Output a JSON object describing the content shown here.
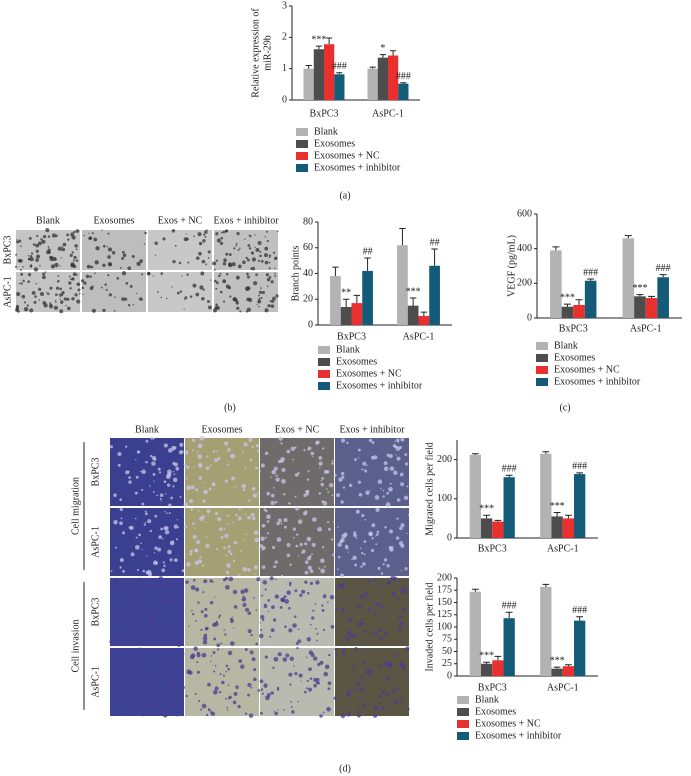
{
  "panel_labels": [
    "(a)",
    "(b)",
    "(c)",
    "(d)"
  ],
  "micrographs_b": {
    "columns": [
      "Blank",
      "Exosomes",
      "Exos + NC",
      "Exos + inhibitor"
    ],
    "rows": [
      "BxPC3",
      "AsPC-1"
    ]
  },
  "micrographs_d": {
    "columns": [
      "Blank",
      "Exosomes",
      "Exos + NC",
      "Exos + inhibitor"
    ],
    "groups": [
      {
        "name": "Cell migration",
        "rows": [
          "BxPC3",
          "AsPC-1"
        ]
      },
      {
        "name": "Cell invasion",
        "rows": [
          "BxPC3",
          "AsPC-1"
        ]
      }
    ]
  },
  "chart_data": [
    {
      "type": "bar",
      "ylabel": [
        "Relative expression of",
        "miR-29b"
      ],
      "categories": [
        "BxPC3",
        "AsPC-1"
      ],
      "ylim": [
        0,
        3
      ],
      "yticks": [
        0,
        1,
        2,
        3
      ],
      "series": [
        {
          "name": "Blank",
          "color": "#b3b3b3",
          "values": [
            1.0,
            1.0
          ],
          "errors": [
            0.1,
            0.05
          ],
          "annotations": [
            null,
            null
          ]
        },
        {
          "name": "Exosomes",
          "color": "#4d4d4d",
          "values": [
            1.62,
            1.35
          ],
          "errors": [
            0.1,
            0.1
          ],
          "annotations": [
            "***",
            "*"
          ]
        },
        {
          "name": "Exosomes + NC",
          "color": "#e8312f",
          "values": [
            1.78,
            1.42
          ],
          "errors": [
            0.2,
            0.15
          ],
          "annotations": [
            null,
            null
          ]
        },
        {
          "name": "Exosomes + inhibitor",
          "color": "#145b78",
          "values": [
            0.82,
            0.52
          ],
          "errors": [
            0.05,
            0.03
          ],
          "annotations": [
            "###",
            "###"
          ]
        }
      ]
    },
    {
      "type": "bar",
      "ylabel": [
        "Branch points"
      ],
      "categories": [
        "BxPC3",
        "AsPC-1"
      ],
      "ylim": [
        0,
        80
      ],
      "yticks": [
        0,
        20,
        40,
        60,
        80
      ],
      "series": [
        {
          "name": "Blank",
          "color": "#b3b3b3",
          "values": [
            38,
            62
          ],
          "errors": [
            7,
            13
          ],
          "annotations": [
            null,
            null
          ]
        },
        {
          "name": "Exosomes",
          "color": "#4d4d4d",
          "values": [
            14,
            15
          ],
          "errors": [
            6,
            6
          ],
          "annotations": [
            "**",
            "***"
          ]
        },
        {
          "name": "Exosomes + NC",
          "color": "#e8312f",
          "values": [
            17,
            7
          ],
          "errors": [
            6,
            3
          ],
          "annotations": [
            null,
            null
          ]
        },
        {
          "name": "Exosomes + inhibitor",
          "color": "#145b78",
          "values": [
            42,
            46
          ],
          "errors": [
            10,
            13
          ],
          "annotations": [
            "##",
            "##"
          ]
        }
      ]
    },
    {
      "type": "bar",
      "ylabel": [
        "VEGF (pg/mL)"
      ],
      "categories": [
        "BxPC3",
        "AsPC-1"
      ],
      "ylim": [
        0,
        600
      ],
      "yticks": [
        0,
        200,
        400,
        600
      ],
      "series": [
        {
          "name": "Blank",
          "color": "#b3b3b3",
          "values": [
            390,
            460
          ],
          "errors": [
            20,
            15
          ],
          "annotations": [
            null,
            null
          ]
        },
        {
          "name": "Exosomes",
          "color": "#4d4d4d",
          "values": [
            65,
            125
          ],
          "errors": [
            15,
            10
          ],
          "annotations": [
            "***",
            "***"
          ]
        },
        {
          "name": "Exosomes + NC",
          "color": "#e8312f",
          "values": [
            75,
            115
          ],
          "errors": [
            30,
            10
          ],
          "annotations": [
            null,
            null
          ]
        },
        {
          "name": "Exosomes + inhibitor",
          "color": "#145b78",
          "values": [
            215,
            235
          ],
          "errors": [
            10,
            15
          ],
          "annotations": [
            "###",
            "###"
          ]
        }
      ]
    },
    {
      "type": "bar",
      "ylabel": [
        "Migrated cells per field"
      ],
      "categories": [
        "BxPC3",
        "AsPC-1"
      ],
      "ylim": [
        0,
        250
      ],
      "yticks": [
        0,
        100,
        200
      ],
      "series": [
        {
          "name": "Blank",
          "color": "#b3b3b3",
          "values": [
            212,
            215
          ],
          "errors": [
            3,
            5
          ],
          "annotations": [
            null,
            null
          ]
        },
        {
          "name": "Exosomes",
          "color": "#4d4d4d",
          "values": [
            50,
            55
          ],
          "errors": [
            8,
            10
          ],
          "annotations": [
            "***",
            "***"
          ]
        },
        {
          "name": "Exosomes + NC",
          "color": "#e8312f",
          "values": [
            42,
            50
          ],
          "errors": [
            3,
            8
          ],
          "annotations": [
            null,
            null
          ]
        },
        {
          "name": "Exosomes + inhibitor",
          "color": "#145b78",
          "values": [
            155,
            163
          ],
          "errors": [
            5,
            3
          ],
          "annotations": [
            "###",
            "###"
          ]
        }
      ]
    },
    {
      "type": "bar",
      "ylabel": [
        "Invaded cells per field"
      ],
      "categories": [
        "BxPC3",
        "AsPC-1"
      ],
      "ylim": [
        0,
        200
      ],
      "yticks": [
        0,
        25,
        50,
        75,
        100,
        125,
        150,
        175,
        200
      ],
      "series": [
        {
          "name": "Blank",
          "color": "#b3b3b3",
          "values": [
            172,
            182
          ],
          "errors": [
            5,
            5
          ],
          "annotations": [
            null,
            null
          ]
        },
        {
          "name": "Exosomes",
          "color": "#4d4d4d",
          "values": [
            25,
            15
          ],
          "errors": [
            3,
            3
          ],
          "annotations": [
            "***",
            "***"
          ]
        },
        {
          "name": "Exosomes + NC",
          "color": "#e8312f",
          "values": [
            32,
            20
          ],
          "errors": [
            8,
            3
          ],
          "annotations": [
            null,
            null
          ]
        },
        {
          "name": "Exosomes + inhibitor",
          "color": "#145b78",
          "values": [
            118,
            113
          ],
          "errors": [
            12,
            8
          ],
          "annotations": [
            "###",
            "###"
          ]
        }
      ]
    }
  ]
}
